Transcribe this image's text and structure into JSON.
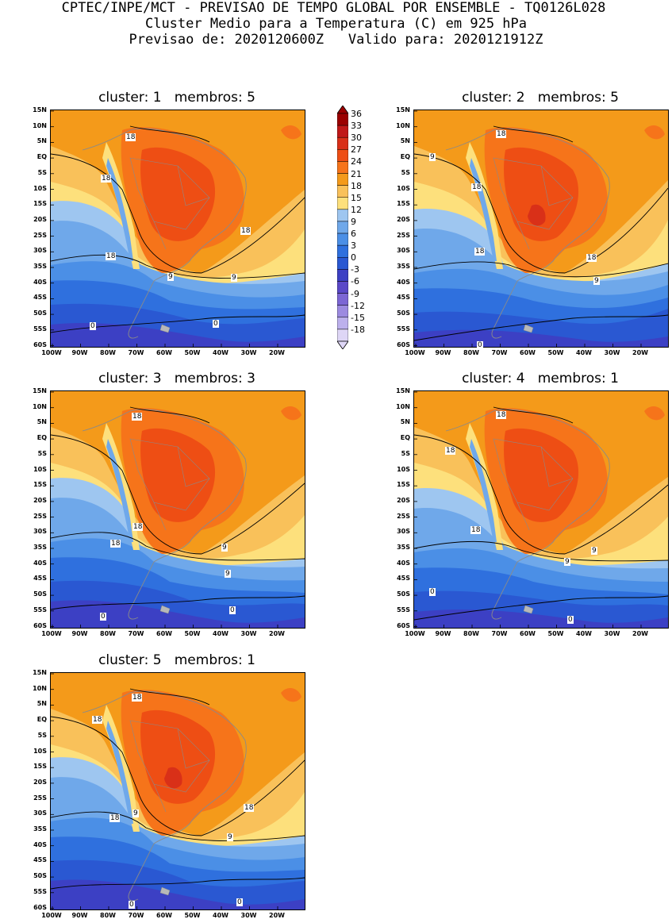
{
  "header": {
    "line1": "CPTEC/INPE/MCT - PREVISAO DE TEMPO GLOBAL POR ENSEMBLE - TQ0126L028",
    "line2": "Cluster Medio para a Temperatura (C) em 925 hPa",
    "line3": "Previsao de: 2020120600Z   Valido para: 2020121912Z"
  },
  "y_ticks": [
    "15N",
    "10N",
    "5N",
    "EQ",
    "5S",
    "10S",
    "15S",
    "20S",
    "25S",
    "30S",
    "35S",
    "40S",
    "45S",
    "50S",
    "55S",
    "60S"
  ],
  "x_ticks": [
    "100W",
    "90W",
    "80W",
    "70W",
    "60W",
    "50W",
    "40W",
    "30W",
    "20W"
  ],
  "colorbar": {
    "labels": [
      "36",
      "33",
      "30",
      "27",
      "24",
      "21",
      "18",
      "15",
      "12",
      "9",
      "6",
      "3",
      "0",
      "-3",
      "-6",
      "-9",
      "-12",
      "-15",
      "-18"
    ],
    "colors": [
      "#9b0000",
      "#c01818",
      "#d93018",
      "#ee4e14",
      "#f6741a",
      "#f49a1a",
      "#f9c15a",
      "#fde07c",
      "#9ec6f0",
      "#6fa8ea",
      "#4b8fe6",
      "#2f70de",
      "#2a58d2",
      "#3c40c4",
      "#5a48c8",
      "#7c66d4",
      "#9c8ae0",
      "#bcb0ec",
      "#ded6f6"
    ]
  },
  "panels": [
    {
      "title": "cluster: 1   membros: 5",
      "contours": [
        "18",
        "18",
        "18",
        "9",
        "18",
        "9",
        "0",
        "0"
      ]
    },
    {
      "title": "cluster: 2   membros: 5",
      "contours": [
        "18",
        "18",
        "18",
        "9",
        "18",
        "9",
        "0"
      ]
    },
    {
      "title": "cluster: 3   membros: 3",
      "contours": [
        "18",
        "18",
        "9",
        "18",
        "9",
        "0",
        "0"
      ]
    },
    {
      "title": "cluster: 4   membros: 1",
      "contours": [
        "18",
        "18",
        "9",
        "18",
        "9",
        "0",
        "0"
      ]
    },
    {
      "title": "cluster: 5   membros: 1",
      "contours": [
        "18",
        "18",
        "9",
        "18",
        "18",
        "9",
        "0",
        "0"
      ]
    }
  ]
}
